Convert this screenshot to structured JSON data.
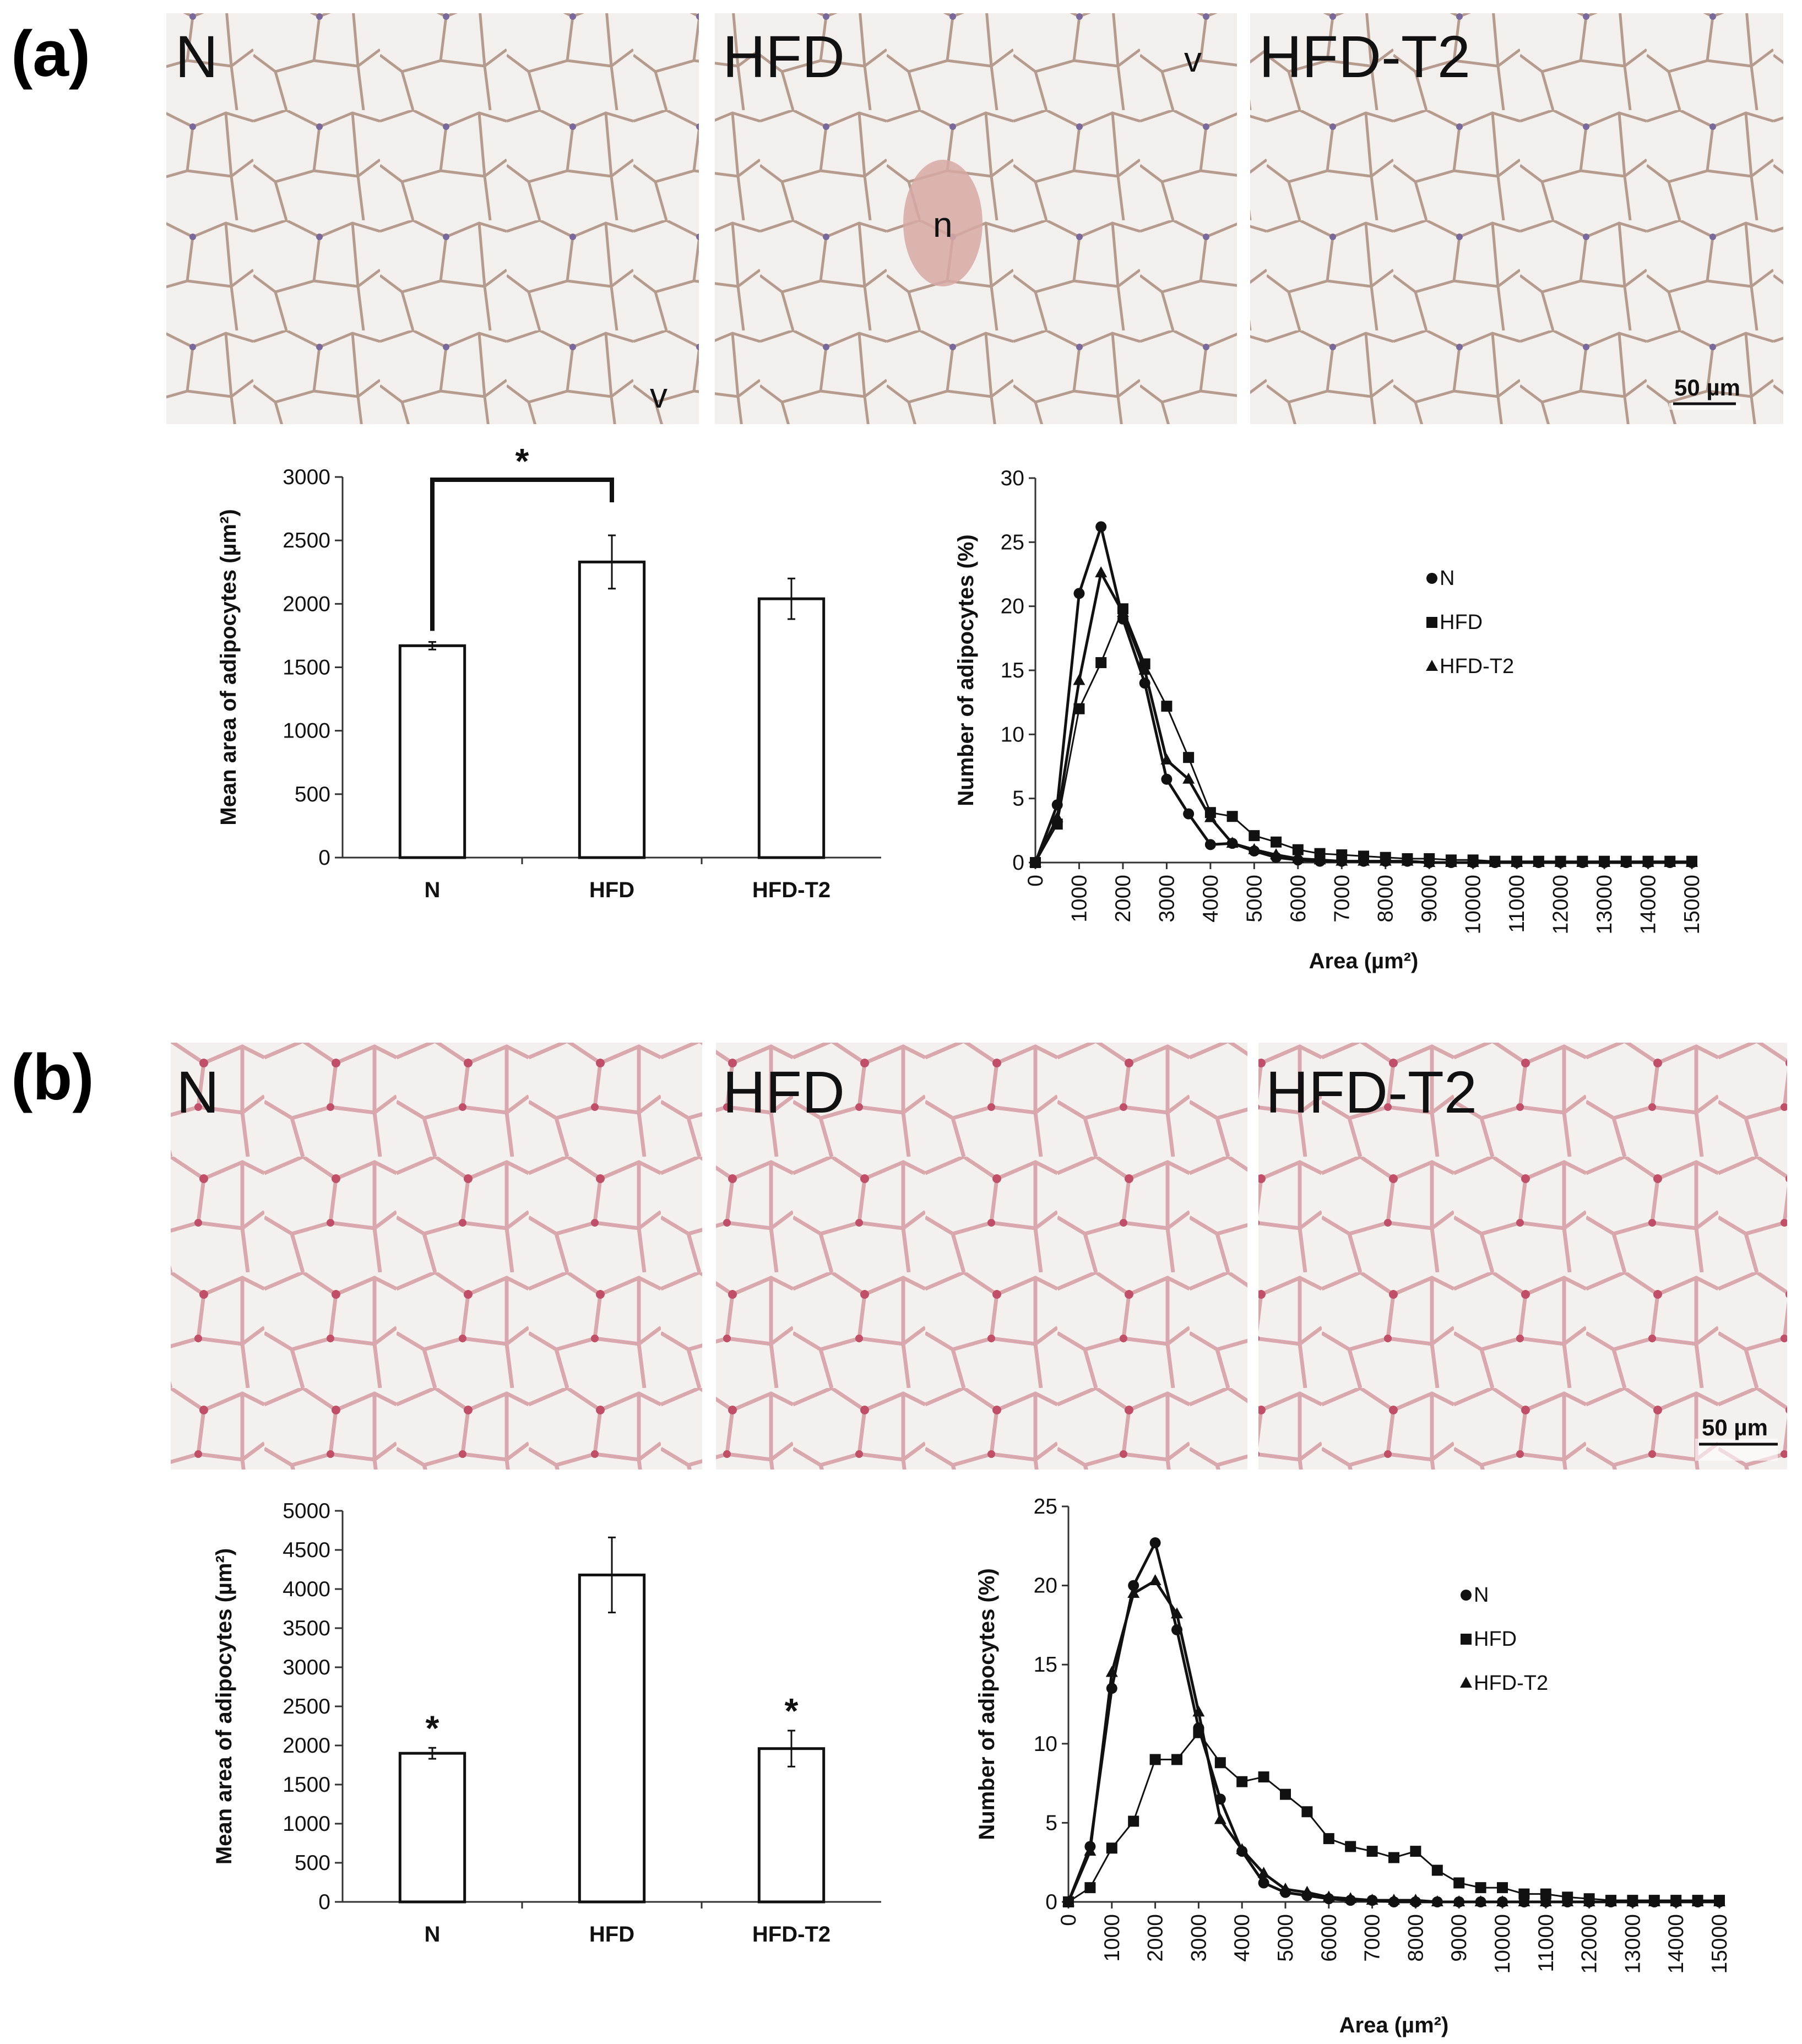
{
  "panel_a": {
    "letter": "(a)",
    "images": [
      {
        "label": "N",
        "markers": [
          "v"
        ]
      },
      {
        "label": "HFD",
        "markers": [
          "n",
          "v"
        ]
      },
      {
        "label": "HFD-T2",
        "markers": []
      }
    ],
    "scale_bar": "50 µm",
    "stain": "pale-pink"
  },
  "panel_b": {
    "letter": "(b)",
    "images": [
      {
        "label": "N",
        "markers": []
      },
      {
        "label": "HFD",
        "markers": []
      },
      {
        "label": "HFD-T2",
        "markers": []
      }
    ],
    "scale_bar": "50 µm",
    "stain": "pink-red"
  },
  "chart_data": [
    {
      "panel": "a",
      "type": "bar",
      "categories": [
        "N",
        "HFD",
        "HFD-T2"
      ],
      "values": [
        1670,
        2330,
        2040
      ],
      "errors": [
        30,
        210,
        160
      ],
      "ylabel": "Mean area of adipocytes (µm²)",
      "xlabel": "",
      "ylim": [
        0,
        3000
      ],
      "yticks": [
        0,
        500,
        1000,
        1500,
        2000,
        2500,
        3000
      ],
      "significance": {
        "type": "bracket",
        "from": "N",
        "to": "HFD",
        "symbol": "*"
      }
    },
    {
      "panel": "a",
      "type": "line",
      "xlabel": "Area (µm²)",
      "ylabel": "Number of adipocytes (%)",
      "xlim": [
        0,
        15000
      ],
      "ylim": [
        0,
        30
      ],
      "xticks": [
        0,
        1000,
        2000,
        3000,
        4000,
        5000,
        6000,
        7000,
        8000,
        9000,
        10000,
        11000,
        12000,
        13000,
        14000,
        15000
      ],
      "yticks": [
        0,
        5,
        10,
        15,
        20,
        25,
        30
      ],
      "legend_position": "right",
      "x": [
        0,
        500,
        1000,
        1500,
        2000,
        2500,
        3000,
        3500,
        4000,
        4500,
        5000,
        5500,
        6000,
        6500,
        7000,
        7500,
        8000,
        8500,
        9000,
        9500,
        10000,
        10500,
        11000,
        11500,
        12000,
        12500,
        13000,
        13500,
        14000,
        14500,
        15000
      ],
      "series": [
        {
          "name": "N",
          "marker": "circle",
          "values": [
            0,
            4.5,
            21,
            26.2,
            19,
            14,
            6.5,
            3.8,
            1.4,
            1.5,
            0.9,
            0.4,
            0.2,
            0.1,
            0.1,
            0.1,
            0.1,
            0.1,
            0,
            0,
            0,
            0,
            0,
            0,
            0,
            0,
            0,
            0,
            0,
            0,
            0
          ]
        },
        {
          "name": "HFD",
          "marker": "square",
          "values": [
            0,
            3,
            12,
            15.6,
            19.8,
            15.5,
            12.2,
            8.2,
            3.9,
            3.6,
            2.1,
            1.6,
            1.0,
            0.7,
            0.6,
            0.5,
            0.4,
            0.3,
            0.3,
            0.2,
            0.2,
            0.1,
            0.1,
            0.1,
            0.1,
            0.1,
            0.1,
            0.1,
            0.1,
            0.1,
            0.1
          ]
        },
        {
          "name": "HFD-T2",
          "marker": "triangle",
          "values": [
            0,
            3.5,
            14.2,
            22.6,
            19.5,
            15,
            8,
            6.5,
            3.5,
            1.5,
            1.0,
            0.6,
            0.3,
            0.2,
            0.1,
            0.1,
            0.1,
            0.1,
            0,
            0,
            0,
            0,
            0,
            0,
            0,
            0,
            0,
            0,
            0,
            0,
            0
          ]
        }
      ]
    },
    {
      "panel": "b",
      "type": "bar",
      "categories": [
        "N",
        "HFD",
        "HFD-T2"
      ],
      "values": [
        1900,
        4180,
        1960
      ],
      "errors": [
        70,
        480,
        230
      ],
      "ylabel": "Mean area of adipocytes (µm²)",
      "xlabel": "",
      "ylim": [
        0,
        5000
      ],
      "yticks": [
        0,
        500,
        1000,
        1500,
        2000,
        2500,
        3000,
        3500,
        4000,
        4500,
        5000
      ],
      "significance": {
        "type": "stars",
        "on": [
          "N",
          "HFD-T2"
        ],
        "symbol": "*"
      }
    },
    {
      "panel": "b",
      "type": "line",
      "xlabel": "Area (µm²)",
      "ylabel": "Number of adipocytes (%)",
      "xlim": [
        0,
        15000
      ],
      "ylim": [
        0,
        25
      ],
      "xticks": [
        0,
        1000,
        2000,
        3000,
        4000,
        5000,
        6000,
        7000,
        8000,
        9000,
        10000,
        11000,
        12000,
        13000,
        14000,
        15000
      ],
      "yticks": [
        0,
        5,
        10,
        15,
        20,
        25
      ],
      "legend_position": "right",
      "x": [
        0,
        500,
        1000,
        1500,
        2000,
        2500,
        3000,
        3500,
        4000,
        4500,
        5000,
        5500,
        6000,
        6500,
        7000,
        7500,
        8000,
        8500,
        9000,
        9500,
        10000,
        10500,
        11000,
        11500,
        12000,
        12500,
        13000,
        13500,
        14000,
        14500,
        15000
      ],
      "series": [
        {
          "name": "N",
          "marker": "circle",
          "values": [
            0,
            3.5,
            13.5,
            20,
            22.7,
            17.2,
            11,
            6.5,
            3.2,
            1.2,
            0.6,
            0.4,
            0.2,
            0.1,
            0.1,
            0,
            0,
            0,
            0,
            0,
            0,
            0,
            0,
            0,
            0,
            0,
            0,
            0,
            0,
            0,
            0
          ]
        },
        {
          "name": "HFD",
          "marker": "square",
          "values": [
            0,
            0.9,
            3.4,
            5.1,
            9.0,
            9.0,
            10.7,
            8.8,
            7.6,
            7.9,
            6.8,
            5.7,
            4.0,
            3.5,
            3.2,
            2.8,
            3.2,
            2.0,
            1.2,
            0.9,
            0.9,
            0.5,
            0.5,
            0.3,
            0.2,
            0.1,
            0.1,
            0.1,
            0.1,
            0.1,
            0.1
          ]
        },
        {
          "name": "HFD-T2",
          "marker": "triangle",
          "values": [
            0,
            3.2,
            14.5,
            19.5,
            20.3,
            18.2,
            12,
            5.2,
            3.3,
            1.8,
            0.8,
            0.6,
            0.3,
            0.2,
            0.1,
            0.1,
            0.1,
            0,
            0,
            0,
            0,
            0,
            0,
            0,
            0,
            0,
            0,
            0,
            0,
            0,
            0
          ]
        }
      ]
    }
  ]
}
